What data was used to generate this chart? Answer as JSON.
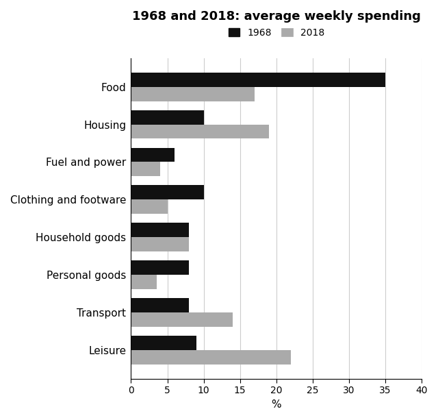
{
  "title": "1968 and 2018: average weekly spending",
  "categories": [
    "Food",
    "Housing",
    "Fuel and power",
    "Clothing and footware",
    "Household goods",
    "Personal goods",
    "Transport",
    "Leisure"
  ],
  "values_1968": [
    35,
    10,
    6,
    10,
    8,
    8,
    8,
    9
  ],
  "values_2018": [
    17,
    19,
    4,
    5,
    8,
    3.5,
    14,
    22
  ],
  "color_1968": "#111111",
  "color_2018": "#aaaaaa",
  "xlabel": "%",
  "xlim": [
    0,
    40
  ],
  "xticks": [
    0,
    5,
    10,
    15,
    20,
    25,
    30,
    35,
    40
  ],
  "legend_labels": [
    "1968",
    "2018"
  ],
  "bar_height": 0.38,
  "grid_color": "#cccccc",
  "background_color": "#ffffff",
  "title_fontsize": 13,
  "axis_fontsize": 11,
  "tick_fontsize": 10,
  "legend_fontsize": 10
}
